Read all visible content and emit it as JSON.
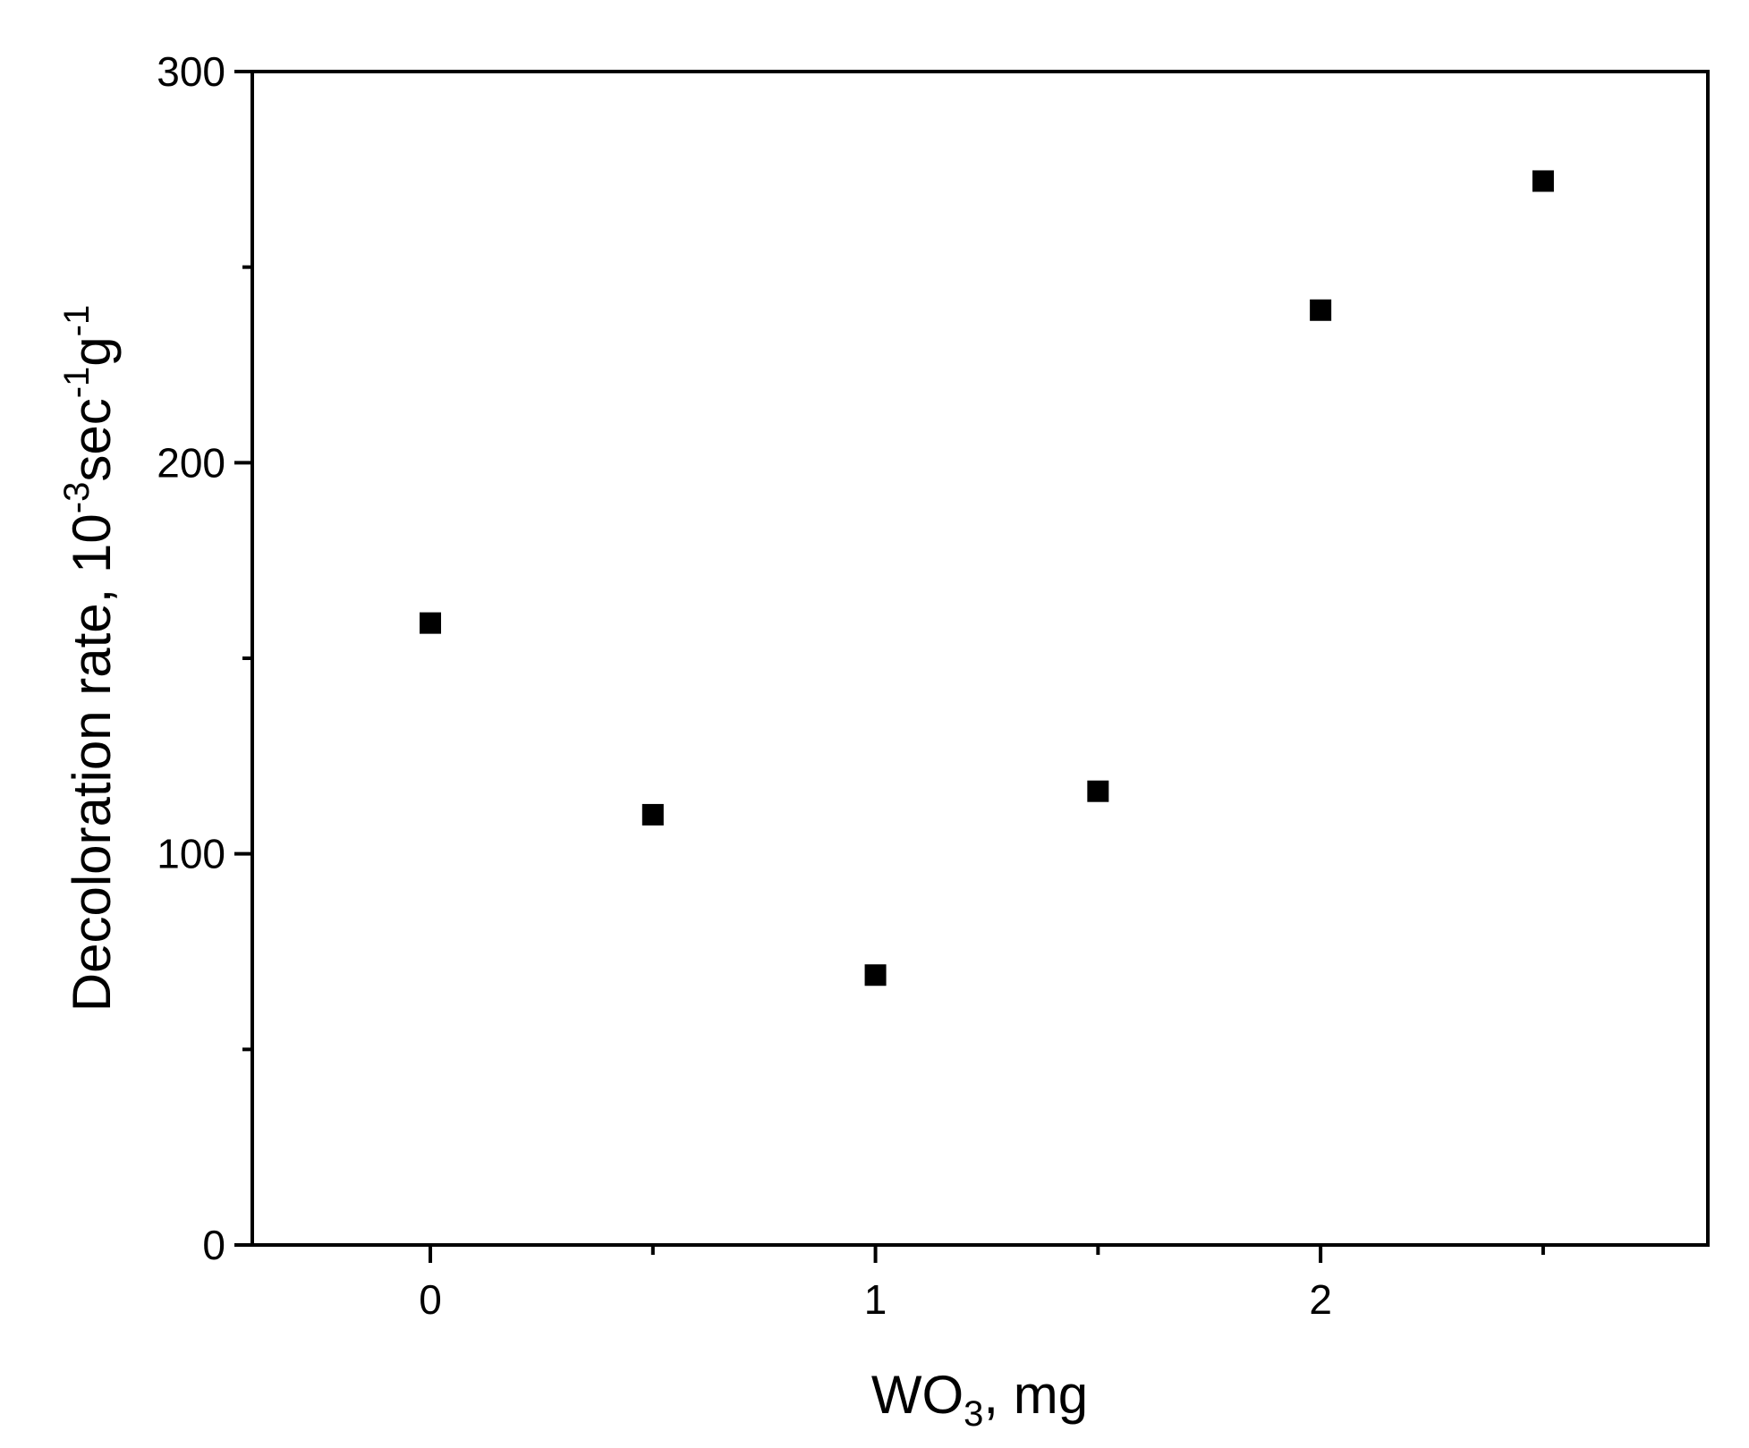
{
  "chart_data": {
    "type": "scatter",
    "title": "",
    "x_label": {
      "main": "WO",
      "sub": "3",
      "after": ", mg"
    },
    "y_label": {
      "p1": "Decoloration rate,  10",
      "s1": "-3",
      "p2": "sec",
      "s2": "-1",
      "p3": "g",
      "s3": "-1"
    },
    "xlim": [
      -0.4,
      2.87
    ],
    "ylim": [
      0,
      300
    ],
    "x_ticks": [
      0,
      1,
      2
    ],
    "x_tick_labels": [
      "0",
      "1",
      "2"
    ],
    "x_minor_ticks": [
      0.5,
      1.5,
      2.5
    ],
    "y_ticks": [
      0,
      100,
      200,
      300
    ],
    "y_tick_labels": [
      "0",
      "100",
      "200",
      "300"
    ],
    "y_minor_ticks": [
      50,
      150,
      250
    ],
    "grid": false,
    "marker": "square",
    "marker_color": "#000000",
    "series": [
      {
        "x": [
          0,
          0.5,
          1.0,
          1.5,
          2.0,
          2.5
        ],
        "y": [
          159,
          110,
          69,
          116,
          239,
          272
        ]
      }
    ]
  }
}
